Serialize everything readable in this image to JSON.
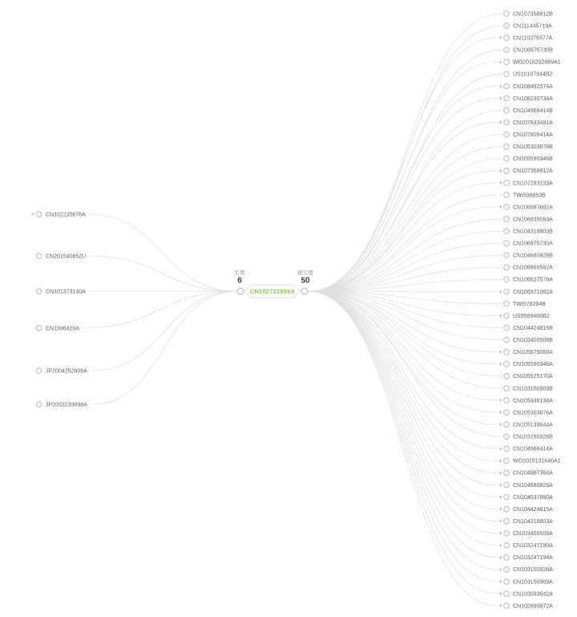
{
  "root": {
    "id": "CN102722899A"
  },
  "left_group": {
    "label": "引用",
    "count": "6"
  },
  "right_group": {
    "label": "被引用",
    "count": "50"
  },
  "cited": [
    {
      "id": "CN102235876A",
      "expandable": true
    },
    {
      "id": "CN201540652U",
      "expandable": false
    },
    {
      "id": "CN101373140A",
      "expandable": false
    },
    {
      "id": "CN1996420A",
      "expandable": false
    },
    {
      "id": "JP2004252809A",
      "expandable": false
    },
    {
      "id": "JP2003233898A",
      "expandable": false
    }
  ],
  "citing": [
    {
      "id": "CN107358812B",
      "expandable": false
    },
    {
      "id": "CN111445719A",
      "expandable": false
    },
    {
      "id": "CN110376577A",
      "expandable": true
    },
    {
      "id": "CN106875730B",
      "expandable": false
    },
    {
      "id": "WO2018232889A1",
      "expandable": true
    },
    {
      "id": "US10107644B2",
      "expandable": false
    },
    {
      "id": "CN108492574A",
      "expandable": true
    },
    {
      "id": "CN108230734A",
      "expandable": true
    },
    {
      "id": "CN104966414B",
      "expandable": false
    },
    {
      "id": "CN107833481A",
      "expandable": true
    },
    {
      "id": "CN107809414A",
      "expandable": false
    },
    {
      "id": "CN105303876B",
      "expandable": false
    },
    {
      "id": "CN105590346B",
      "expandable": false
    },
    {
      "id": "CN107358812A",
      "expandable": true
    },
    {
      "id": "CN107293153A",
      "expandable": true
    },
    {
      "id": "TWI598853B",
      "expandable": false
    },
    {
      "id": "CN106997682A",
      "expandable": true
    },
    {
      "id": "CN106935063A",
      "expandable": false
    },
    {
      "id": "CN104318803B",
      "expandable": false
    },
    {
      "id": "CN106875730A",
      "expandable": false
    },
    {
      "id": "CN104680828B",
      "expandable": false
    },
    {
      "id": "CN106660562A",
      "expandable": false
    },
    {
      "id": "CN106627576A",
      "expandable": false
    },
    {
      "id": "CN106571062A",
      "expandable": true
    },
    {
      "id": "TWI578284B",
      "expandable": false
    },
    {
      "id": "US9589466B2",
      "expandable": true
    },
    {
      "id": "CN104424815B",
      "expandable": false
    },
    {
      "id": "CN103400508B",
      "expandable": false
    },
    {
      "id": "CN105679068A",
      "expandable": true
    },
    {
      "id": "CN105590346A",
      "expandable": true
    },
    {
      "id": "CN105575170A",
      "expandable": false
    },
    {
      "id": "CN103150909B",
      "expandable": false
    },
    {
      "id": "CN105448134A",
      "expandable": true
    },
    {
      "id": "CN105303876A",
      "expandable": true
    },
    {
      "id": "CN105139644A",
      "expandable": true
    },
    {
      "id": "CN103150928B",
      "expandable": false
    },
    {
      "id": "CN104966414A",
      "expandable": true
    },
    {
      "id": "WO2015131646A1",
      "expandable": true
    },
    {
      "id": "CN104867354A",
      "expandable": true
    },
    {
      "id": "CN104680828A",
      "expandable": true
    },
    {
      "id": "CN104537880A",
      "expandable": true
    },
    {
      "id": "CN104424815A",
      "expandable": true
    },
    {
      "id": "CN104318803A",
      "expandable": true
    },
    {
      "id": "CN103400508A",
      "expandable": true
    },
    {
      "id": "CN103247190A",
      "expandable": true
    },
    {
      "id": "CN103247194A",
      "expandable": true
    },
    {
      "id": "CN103150928A",
      "expandable": true
    },
    {
      "id": "CN103150909A",
      "expandable": true
    },
    {
      "id": "CN103093642A",
      "expandable": true
    },
    {
      "id": "CN102890872A",
      "expandable": true
    }
  ],
  "colors": {
    "root_text": "#8bc34a",
    "box_border": "#e0e0e0",
    "box_fill": "#ffffff",
    "node_text": "#606060",
    "edge": "#e0e0e0",
    "circle_stroke": "#b5b5b5",
    "circle_fill": "#ffffff",
    "plus": "#999999",
    "group_label": "#999999",
    "count_text": "#3c3c3c"
  }
}
